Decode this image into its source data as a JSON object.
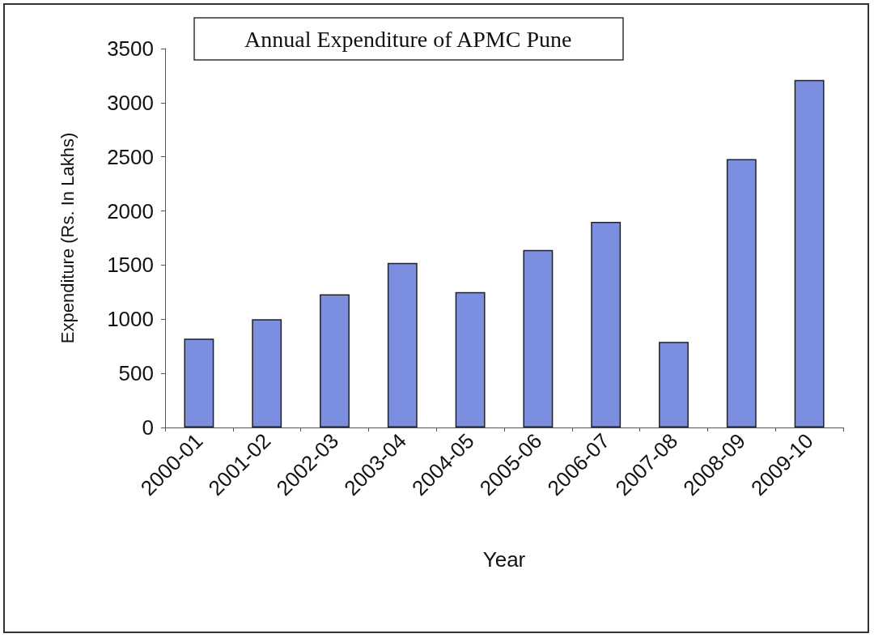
{
  "chart_data": {
    "type": "bar",
    "title": "Annual Expenditure of APMC Pune",
    "xlabel": "Year",
    "ylabel": "Expenditure (Rs. In Lakhs)",
    "categories": [
      "2000-01",
      "2001-02",
      "2002-03",
      "2003-04",
      "2004-05",
      "2005-06",
      "2006-07",
      "2007-08",
      "2008-09",
      "2009-10"
    ],
    "values": [
      820,
      1000,
      1230,
      1520,
      1250,
      1640,
      1900,
      790,
      2480,
      3210
    ],
    "color": "#7b8ee0",
    "ylim": [
      0,
      3500
    ],
    "yticks": [
      0,
      500,
      1000,
      1500,
      2000,
      2500,
      3000,
      3500
    ],
    "grid": false
  }
}
